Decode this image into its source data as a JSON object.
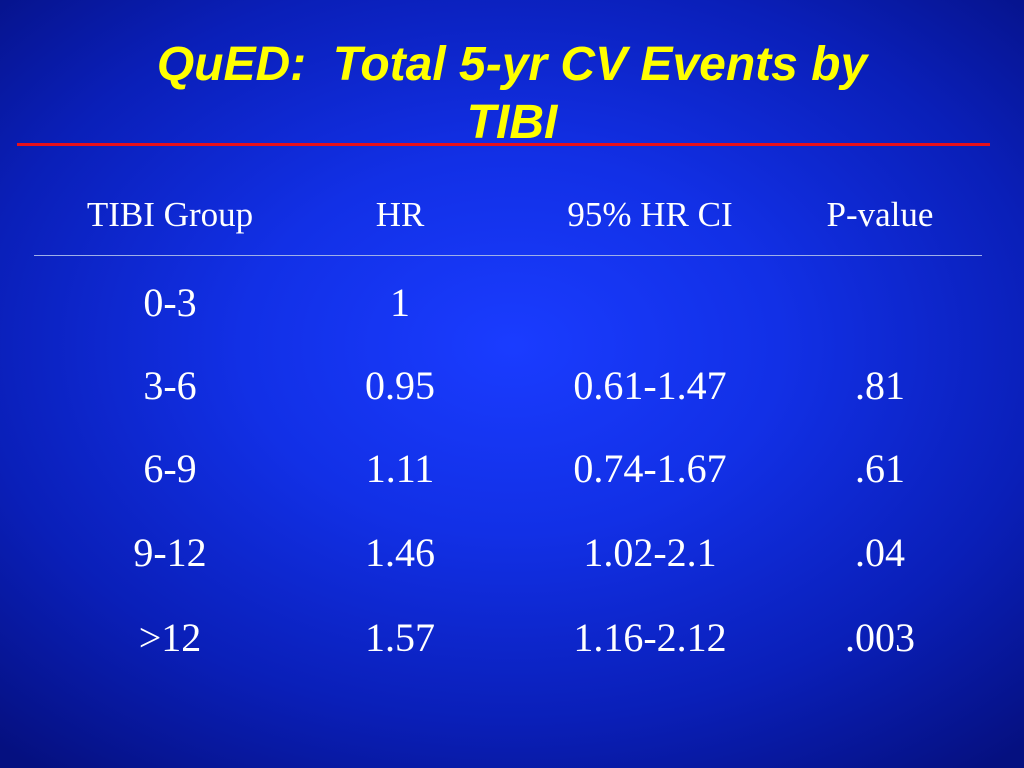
{
  "slide": {
    "title": "QuED:  Total 5-yr CV Events by\nTIBI"
  },
  "table": {
    "headers": [
      "TIBI Group",
      "HR",
      "95% HR CI",
      "P-value"
    ],
    "rows": [
      [
        "0-3",
        "1",
        "",
        ""
      ],
      [
        "3-6",
        "0.95",
        "0.61-1.47",
        ".81"
      ],
      [
        "6-9",
        "1.11",
        "0.74-1.67",
        ".61"
      ],
      [
        "9-12",
        "1.46",
        "1.02-2.1",
        ".04"
      ],
      [
        ">12",
        "1.57",
        "1.16-2.12",
        ".003"
      ]
    ]
  },
  "colors": {
    "background": "#1230e6",
    "title": "#ffff00",
    "rule": "#e8101a",
    "text": "#ffffff"
  }
}
